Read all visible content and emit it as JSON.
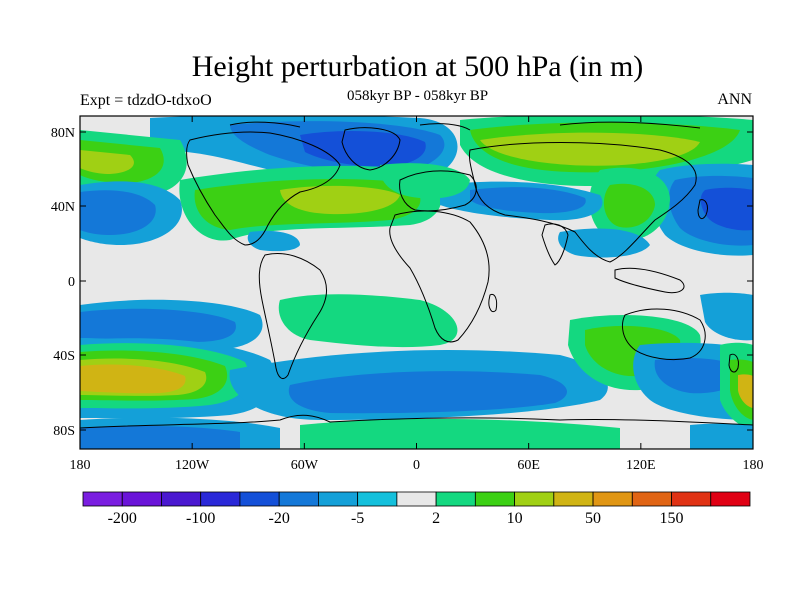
{
  "title": "Height perturbation at 500 hPa (in m)",
  "subtitle": "058kyr BP - 058kyr BP",
  "left_label": "Expt = tdzdO-tdxoO",
  "right_label": "ANN",
  "lat_ticks": [
    "80N",
    "40N",
    "0",
    "40S",
    "80S"
  ],
  "lon_ticks": [
    "180",
    "120W",
    "60W",
    "0",
    "60E",
    "120E",
    "180"
  ],
  "colorbar": {
    "colors": [
      "#7a1ee0",
      "#6a14d8",
      "#4a18d0",
      "#2a28d8",
      "#1450d8",
      "#1478d8",
      "#14a0d8",
      "#14c0dc",
      "#e8e8e8",
      "#14d880",
      "#3cd014",
      "#a0d014",
      "#d0b414",
      "#e09614",
      "#e06414",
      "#e03214",
      "#e00014"
    ],
    "labels": [
      "-200",
      "-100",
      "-20",
      "-5",
      "2",
      "10",
      "50",
      "150"
    ]
  },
  "colors": {
    "neutral": "#e8e8e8",
    "light_blue": "#14a0d8",
    "blue": "#1478d8",
    "dark_blue": "#1450d8",
    "green": "#14d880",
    "light_green": "#3cd014",
    "yellow_green": "#a0d014",
    "yellow": "#d0b414"
  }
}
